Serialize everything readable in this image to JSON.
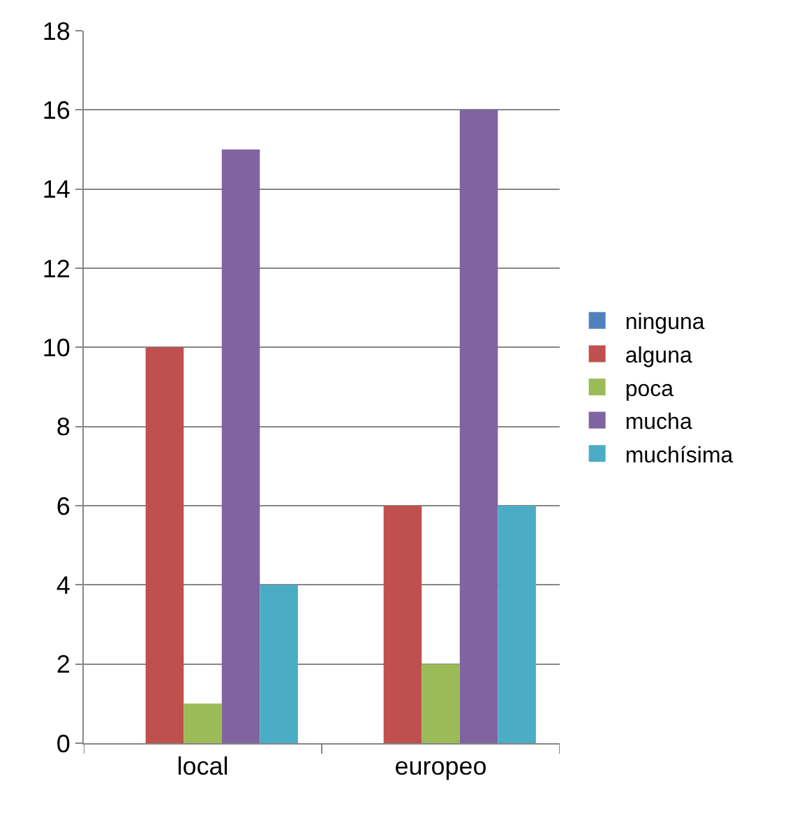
{
  "chart_data": {
    "type": "bar",
    "categories": [
      "local",
      "europeo"
    ],
    "series": [
      {
        "name": "ninguna",
        "color": "#4f81bd",
        "values": [
          0,
          0
        ]
      },
      {
        "name": "alguna",
        "color": "#c0504d",
        "values": [
          10,
          6
        ]
      },
      {
        "name": "poca",
        "color": "#9bbb59",
        "values": [
          1,
          2
        ]
      },
      {
        "name": "mucha",
        "color": "#8064a2",
        "values": [
          15,
          16
        ]
      },
      {
        "name": "muchísima",
        "color": "#4bacc6",
        "values": [
          4,
          6
        ]
      }
    ],
    "ylim": [
      0,
      18
    ],
    "yticks": [
      0,
      2,
      4,
      6,
      8,
      10,
      12,
      14,
      16,
      18
    ],
    "grid": "y",
    "legend": "right"
  }
}
